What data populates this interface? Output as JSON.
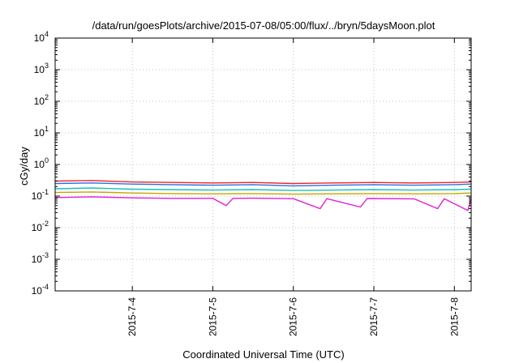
{
  "chart_data": {
    "type": "line",
    "title": "/data/run/goesPlots/archive/2015-07-08/05:00/flux/../bryn/5daysMoon.plot",
    "xlabel": "Coordinated Universal Time (UTC)",
    "ylabel": "cGy/day",
    "y_scale": "log",
    "ylim": [
      0.0001,
      10000
    ],
    "y_ticks": [
      {
        "value": 0.0001,
        "base": "10",
        "exp": "-4"
      },
      {
        "value": 0.001,
        "base": "10",
        "exp": "-3"
      },
      {
        "value": 0.01,
        "base": "10",
        "exp": "-2"
      },
      {
        "value": 0.1,
        "base": "10",
        "exp": "-1"
      },
      {
        "value": 1,
        "base": "10",
        "exp": "0"
      },
      {
        "value": 10,
        "base": "10",
        "exp": "1"
      },
      {
        "value": 100,
        "base": "10",
        "exp": "2"
      },
      {
        "value": 1000,
        "base": "10",
        "exp": "3"
      },
      {
        "value": 10000,
        "base": "10",
        "exp": "4"
      }
    ],
    "xlim": [
      "2015-07-03 01:00",
      "2015-07-08 05:00"
    ],
    "x_ticks": [
      "2015-7-4",
      "2015-7-5",
      "2015-7-6",
      "2015-7-7",
      "2015-7-8"
    ],
    "x_tick_dates": [
      "2015-07-04",
      "2015-07-05",
      "2015-07-06",
      "2015-07-07",
      "2015-07-08"
    ],
    "grid": true,
    "legend": "none",
    "series": [
      {
        "color": "#e8262b",
        "points": [
          [
            "2015-07-03 01:00",
            0.3
          ],
          [
            "2015-07-03 12:00",
            0.31
          ],
          [
            "2015-07-04 00:00",
            0.28
          ],
          [
            "2015-07-04 12:00",
            0.27
          ],
          [
            "2015-07-05 00:00",
            0.26
          ],
          [
            "2015-07-05 12:00",
            0.27
          ],
          [
            "2015-07-06 00:00",
            0.25
          ],
          [
            "2015-07-06 12:00",
            0.26
          ],
          [
            "2015-07-07 00:00",
            0.27
          ],
          [
            "2015-07-07 12:00",
            0.26
          ],
          [
            "2015-07-08 00:00",
            0.27
          ],
          [
            "2015-07-08 05:00",
            0.28
          ]
        ]
      },
      {
        "color": "#2f6fe0",
        "points": [
          [
            "2015-07-03 01:00",
            0.25
          ],
          [
            "2015-07-03 12:00",
            0.26
          ],
          [
            "2015-07-04 00:00",
            0.24
          ],
          [
            "2015-07-04 12:00",
            0.23
          ],
          [
            "2015-07-05 00:00",
            0.22
          ],
          [
            "2015-07-05 12:00",
            0.23
          ],
          [
            "2015-07-06 00:00",
            0.21
          ],
          [
            "2015-07-06 12:00",
            0.22
          ],
          [
            "2015-07-07 00:00",
            0.23
          ],
          [
            "2015-07-07 12:00",
            0.22
          ],
          [
            "2015-07-08 00:00",
            0.23
          ],
          [
            "2015-07-08 05:00",
            0.24
          ]
        ]
      },
      {
        "color": "#19c3b8",
        "points": [
          [
            "2015-07-03 01:00",
            0.17
          ],
          [
            "2015-07-03 12:00",
            0.18
          ],
          [
            "2015-07-04 00:00",
            0.165
          ],
          [
            "2015-07-04 12:00",
            0.16
          ],
          [
            "2015-07-05 00:00",
            0.155
          ],
          [
            "2015-07-05 12:00",
            0.16
          ],
          [
            "2015-07-06 00:00",
            0.15
          ],
          [
            "2015-07-06 12:00",
            0.155
          ],
          [
            "2015-07-07 00:00",
            0.16
          ],
          [
            "2015-07-07 12:00",
            0.155
          ],
          [
            "2015-07-08 00:00",
            0.16
          ],
          [
            "2015-07-08 05:00",
            0.165
          ]
        ]
      },
      {
        "color": "#c8a400",
        "points": [
          [
            "2015-07-03 01:00",
            0.13
          ],
          [
            "2015-07-03 12:00",
            0.135
          ],
          [
            "2015-07-04 00:00",
            0.125
          ],
          [
            "2015-07-04 12:00",
            0.12
          ],
          [
            "2015-07-05 00:00",
            0.118
          ],
          [
            "2015-07-05 12:00",
            0.12
          ],
          [
            "2015-07-06 00:00",
            0.115
          ],
          [
            "2015-07-06 12:00",
            0.118
          ],
          [
            "2015-07-07 00:00",
            0.12
          ],
          [
            "2015-07-07 12:00",
            0.118
          ],
          [
            "2015-07-08 00:00",
            0.12
          ],
          [
            "2015-07-08 05:00",
            0.125
          ]
        ]
      },
      {
        "color": "#e020d8",
        "points": [
          [
            "2015-07-03 01:00",
            0.09
          ],
          [
            "2015-07-03 12:00",
            0.095
          ],
          [
            "2015-07-04 00:00",
            0.088
          ],
          [
            "2015-07-04 12:00",
            0.085
          ],
          [
            "2015-07-05 00:00",
            0.085
          ],
          [
            "2015-07-05 04:00",
            0.05
          ],
          [
            "2015-07-05 06:00",
            0.085
          ],
          [
            "2015-07-05 12:00",
            0.086
          ],
          [
            "2015-07-06 00:00",
            0.083
          ],
          [
            "2015-07-06 08:00",
            0.04
          ],
          [
            "2015-07-06 10:00",
            0.083
          ],
          [
            "2015-07-06 20:00",
            0.045
          ],
          [
            "2015-07-06 22:00",
            0.084
          ],
          [
            "2015-07-07 12:00",
            0.082
          ],
          [
            "2015-07-07 19:00",
            0.04
          ],
          [
            "2015-07-07 21:00",
            0.083
          ],
          [
            "2015-07-08 04:00",
            0.035
          ],
          [
            "2015-07-08 05:00",
            0.085
          ]
        ]
      }
    ]
  }
}
